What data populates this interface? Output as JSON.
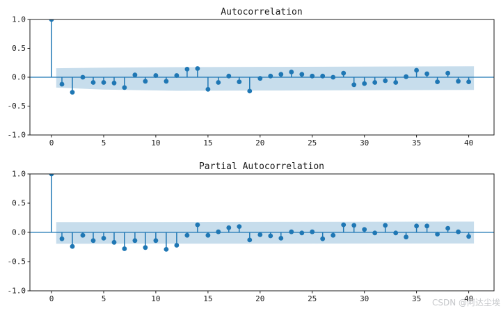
{
  "watermark": {
    "text": "CSDN @阿达尘埃",
    "color": "#c5c7ca"
  },
  "colors": {
    "line": "#1f77b4",
    "band": "#1f77b4",
    "band_opacity": 0.25,
    "spine": "#1a1a1a",
    "tick_label": "#1a1a1a"
  },
  "chart_data": [
    {
      "type": "stem",
      "title": "Autocorrelation",
      "xlabel": "",
      "ylabel": "",
      "xlim": [
        -2.07,
        42.43
      ],
      "ylim": [
        -1.0,
        1.0
      ],
      "grid": false,
      "legend": "none",
      "xticks": [
        0,
        5,
        10,
        15,
        20,
        25,
        30,
        35,
        40
      ],
      "yticks": [
        "1.0",
        "0.5",
        "0.0",
        "-0.5",
        "-1.0"
      ],
      "ytick_values": [
        1.0,
        0.5,
        0.0,
        -0.5,
        -1.0
      ],
      "lags": [
        0,
        1,
        2,
        3,
        4,
        5,
        6,
        7,
        8,
        9,
        10,
        11,
        12,
        13,
        14,
        15,
        16,
        17,
        18,
        19,
        20,
        21,
        22,
        23,
        24,
        25,
        26,
        27,
        28,
        29,
        30,
        31,
        32,
        33,
        34,
        35,
        36,
        37,
        38,
        39,
        40
      ],
      "values": [
        1.0,
        -0.12,
        -0.26,
        0.0,
        -0.09,
        -0.09,
        -0.1,
        -0.18,
        0.04,
        -0.07,
        0.03,
        -0.07,
        0.03,
        0.14,
        0.15,
        -0.21,
        -0.09,
        0.02,
        -0.08,
        -0.24,
        -0.02,
        0.02,
        0.05,
        0.09,
        0.05,
        0.02,
        0.02,
        0.0,
        0.07,
        -0.13,
        -0.11,
        -0.09,
        -0.06,
        -0.09,
        0.01,
        0.12,
        0.06,
        -0.08,
        0.07,
        -0.07,
        -0.08
      ],
      "band": [
        {
          "lag": 0.45,
          "top": 0.155,
          "bottom": -0.18
        },
        {
          "lag": 5,
          "top": 0.165,
          "bottom": -0.215
        },
        {
          "lag": 12,
          "top": 0.175,
          "bottom": -0.235
        },
        {
          "lag": 22,
          "top": 0.18,
          "bottom": -0.23
        },
        {
          "lag": 40.5,
          "top": 0.19,
          "bottom": -0.22
        }
      ]
    },
    {
      "type": "stem",
      "title": "Partial Autocorrelation",
      "xlabel": "",
      "ylabel": "",
      "xlim": [
        -2.07,
        42.43
      ],
      "ylim": [
        -1.0,
        1.0
      ],
      "grid": false,
      "legend": "none",
      "xticks": [
        0,
        5,
        10,
        15,
        20,
        25,
        30,
        35,
        40
      ],
      "yticks": [
        "1.0",
        "0.5",
        "0.0",
        "-0.5",
        "-1.0"
      ],
      "ytick_values": [
        1.0,
        0.5,
        0.0,
        -0.5,
        -1.0
      ],
      "lags": [
        0,
        1,
        2,
        3,
        4,
        5,
        6,
        7,
        8,
        9,
        10,
        11,
        12,
        13,
        14,
        15,
        16,
        17,
        18,
        19,
        20,
        21,
        22,
        23,
        24,
        25,
        26,
        27,
        28,
        29,
        30,
        31,
        32,
        33,
        34,
        35,
        36,
        37,
        38,
        39,
        40
      ],
      "values": [
        1.0,
        -0.11,
        -0.24,
        -0.05,
        -0.14,
        -0.1,
        -0.17,
        -0.28,
        -0.14,
        -0.26,
        -0.14,
        -0.29,
        -0.22,
        -0.05,
        0.13,
        -0.05,
        0.01,
        0.08,
        0.1,
        -0.13,
        -0.04,
        -0.06,
        -0.1,
        0.01,
        -0.01,
        0.01,
        -0.11,
        -0.05,
        0.13,
        0.12,
        0.05,
        -0.01,
        0.12,
        -0.01,
        -0.08,
        0.11,
        0.11,
        -0.03,
        0.07,
        0.01,
        -0.07
      ],
      "band": [
        {
          "lag": 0.45,
          "top": 0.175,
          "bottom": -0.195
        },
        {
          "lag": 40.5,
          "top": 0.185,
          "bottom": -0.19
        }
      ]
    }
  ]
}
